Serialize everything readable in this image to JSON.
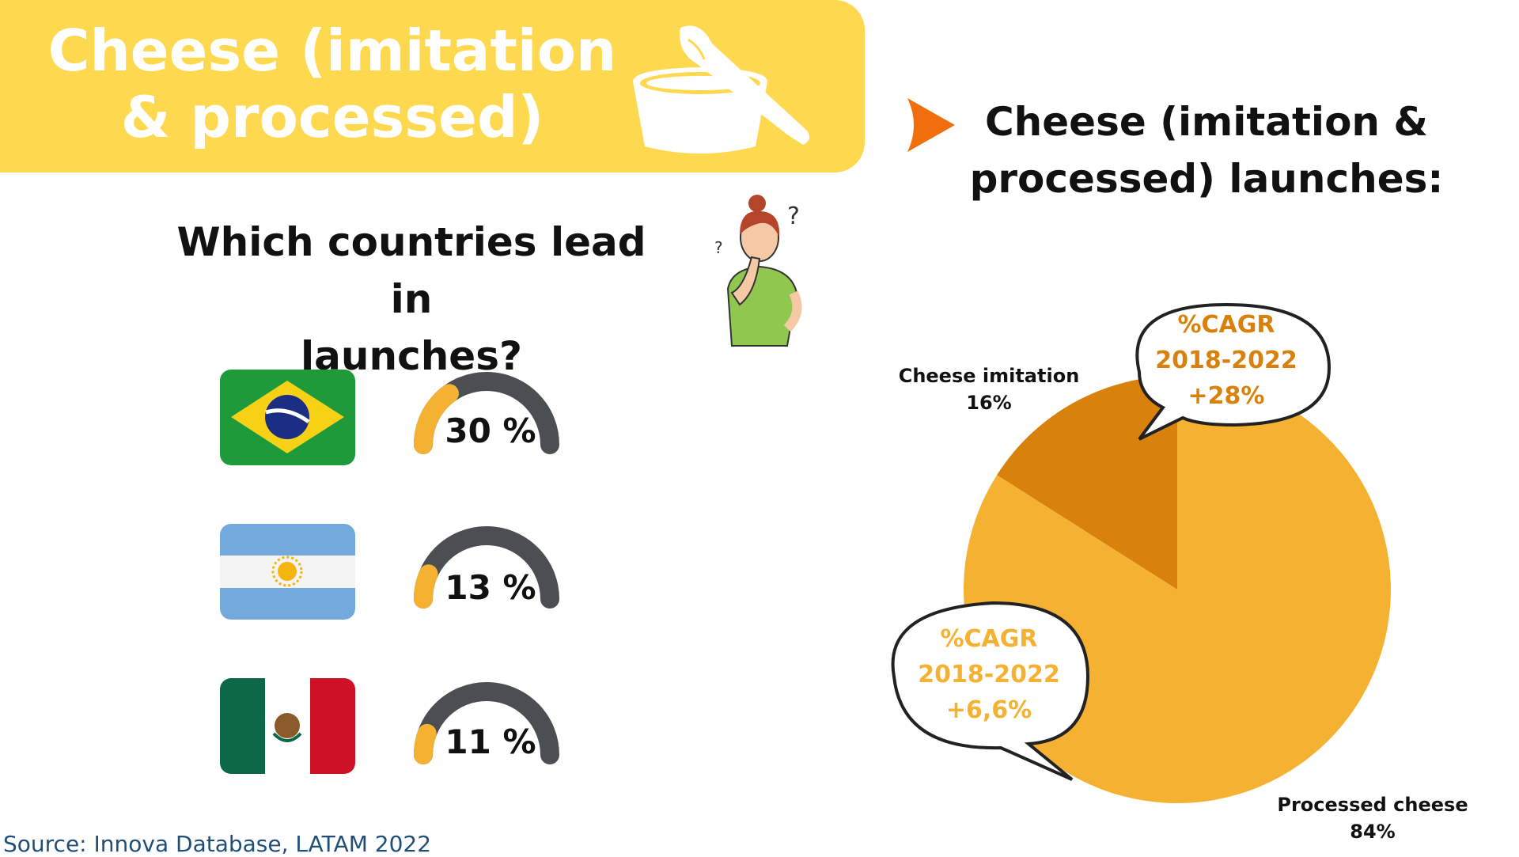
{
  "header": {
    "title": "Cheese (imitation\n& processed)",
    "icon": "cheese-tub-icon"
  },
  "left": {
    "question": "Which countries lead in\nlaunches?",
    "countries": [
      {
        "flag": "brazil-flag",
        "value": 30,
        "label": "30 %"
      },
      {
        "flag": "argentina-flag",
        "value": 13,
        "label": "13 %"
      },
      {
        "flag": "mexico-flag",
        "value": 11,
        "label": "11 %"
      }
    ]
  },
  "right": {
    "title": "Cheese (imitation &\nprocessed) launches:"
  },
  "chart_data": {
    "type": "pie",
    "title": "Cheese (imitation & processed) launches:",
    "categories": [
      "Cheese imitation",
      "Processed cheese"
    ],
    "values": [
      16,
      84
    ],
    "labels": [
      "Cheese imitation\n16%",
      "Processed cheese\n84%"
    ],
    "colors": [
      "#d8810c",
      "#f5b131"
    ],
    "annotations": [
      {
        "target": "Cheese imitation",
        "text": "%CAGR\n2018-2022\n+28%",
        "color": "#d8810c"
      },
      {
        "target": "Processed cheese",
        "text": "%CAGR\n2018-2022\n+6,6%",
        "color": "#f5b131"
      }
    ]
  },
  "colors": {
    "banner": "#fed84e",
    "gauge_track": "#4b4f54",
    "gauge_fill": "#f5b131",
    "arrow": "#f06e0d"
  },
  "source": "Source: Innova Database, LATAM 2022"
}
